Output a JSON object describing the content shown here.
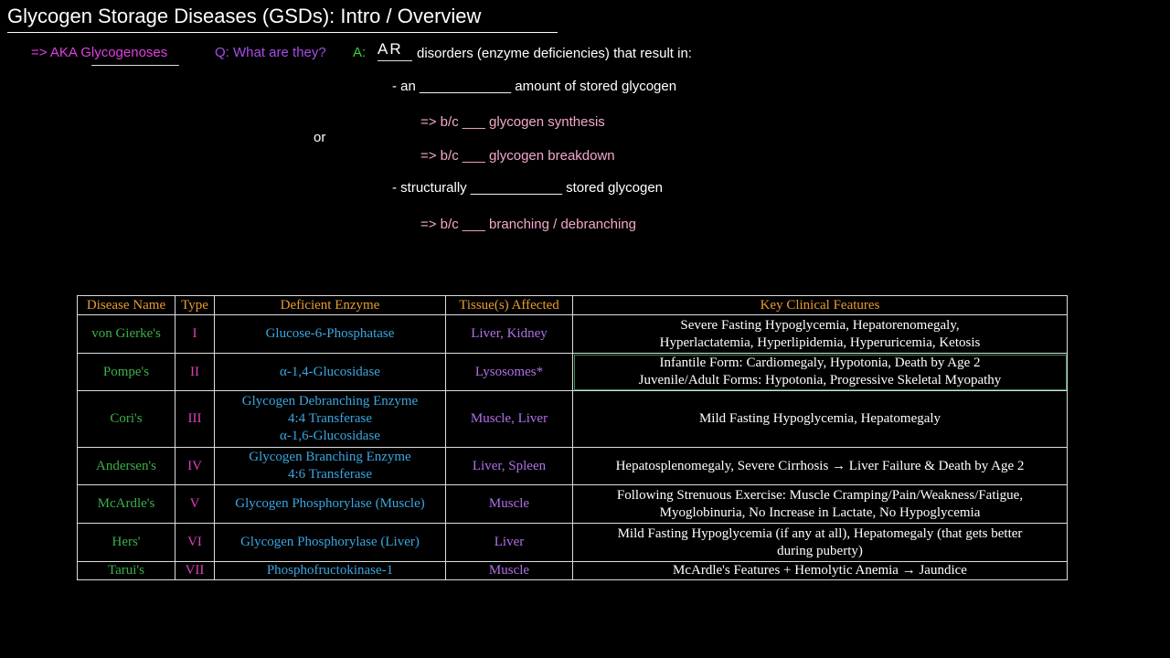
{
  "title": "Glycogen Storage Diseases (GSDs): Intro / Overview",
  "intro": {
    "aka": "=> AKA Glycogenoses",
    "question": "Q: What are they?",
    "answer_label": "A:",
    "answer_handwritten": "AR",
    "answer_text": "disorders (enzyme deficiencies) that result in:",
    "bullet1": "- an ____________ amount of stored glycogen",
    "sub1": "=> b/c ___ glycogen synthesis",
    "sub2": "=> b/c ___ glycogen breakdown",
    "or": "or",
    "bullet2": "- structurally ____________ stored glycogen",
    "sub3": "=> b/c ___ branching / debranching"
  },
  "table": {
    "headers": {
      "name": "Disease Name",
      "type": "Type",
      "enzyme": "Deficient Enzyme",
      "tissue": "Tissue(s) Affected",
      "features": "Key Clinical Features"
    },
    "rows": [
      {
        "name": "von Gierke's",
        "type": "I",
        "enzyme": [
          "Glucose-6-Phosphatase"
        ],
        "tissue": "Liver, Kidney",
        "features": [
          "Severe Fasting Hypoglycemia, Hepatorenomegaly,",
          "Hyperlactatemia, Hyperlipidemia, Hyperuricemia, Ketosis"
        ]
      },
      {
        "name": "Pompe's",
        "type": "II",
        "enzyme": [
          "α-1,4-Glucosidase"
        ],
        "tissue": "Lysosomes*",
        "features": [
          "Infantile Form: Cardiomegaly, Hypotonia, Death by Age 2",
          "Juvenile/Adult Forms: Hypotonia, Progressive Skeletal Myopathy"
        ]
      },
      {
        "name": "Cori's",
        "type": "III",
        "enzyme": [
          "Glycogen Debranching Enzyme",
          "4:4 Transferase",
          "α-1,6-Glucosidase"
        ],
        "tissue": "Muscle, Liver",
        "features": [
          "Mild Fasting Hypoglycemia, Hepatomegaly"
        ]
      },
      {
        "name": "Andersen's",
        "type": "IV",
        "enzyme": [
          "Glycogen Branching Enzyme",
          "4:6 Transferase"
        ],
        "tissue": "Liver, Spleen",
        "features": [
          "Hepatosplenomegaly, Severe Cirrhosis → Liver Failure & Death by Age 2"
        ]
      },
      {
        "name": "McArdle's",
        "type": "V",
        "enzyme": [
          "Glycogen Phosphorylase (Muscle)"
        ],
        "tissue": "Muscle",
        "features": [
          "Following Strenuous Exercise: Muscle Cramping/Pain/Weakness/Fatigue,",
          "Myoglobinuria, No Increase in Lactate, No Hypoglycemia"
        ]
      },
      {
        "name": "Hers'",
        "type": "VI",
        "enzyme": [
          "Glycogen Phosphorylase (Liver)"
        ],
        "tissue": "Liver",
        "features": [
          "Mild Fasting Hypoglycemia (if any at all), Hepatomegaly (that gets better",
          "during puberty)"
        ]
      },
      {
        "name": "Tarui's",
        "type": "VII",
        "enzyme": [
          "Phosphofructokinase-1"
        ],
        "tissue": "Muscle",
        "features": [
          "McArdle's Features + Hemolytic Anemia → Jaundice"
        ]
      }
    ]
  },
  "colors": {
    "background": "#000000",
    "header": "#e89c2c",
    "disease_name": "#3ab04a",
    "type": "#e040b8",
    "enzyme": "#3aa6e0",
    "tissue": "#b070e8",
    "features": "#ffffff",
    "aka": "#e040e0",
    "question": "#a64ce8",
    "answer_label": "#3ad03a",
    "sub_points": "#f4a8cc"
  }
}
